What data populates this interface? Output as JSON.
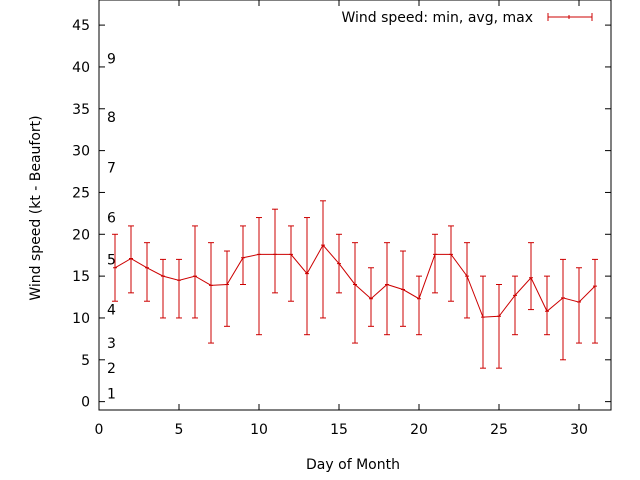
{
  "chart_data": {
    "type": "line",
    "xlabel": "Day of Month",
    "ylabel": "Wind speed (kt - Beaufort)",
    "xlim": [
      0,
      32
    ],
    "ylim": [
      -1,
      48
    ],
    "xticks": [
      "0",
      "5",
      "10",
      "15",
      "20",
      "25",
      "30"
    ],
    "yticks": [
      "0",
      "5",
      "10",
      "15",
      "20",
      "25",
      "30",
      "35",
      "40",
      "45"
    ],
    "beaufort_labels": [
      {
        "text": "1",
        "y": 1
      },
      {
        "text": "2",
        "y": 4
      },
      {
        "text": "3",
        "y": 7
      },
      {
        "text": "4",
        "y": 11
      },
      {
        "text": "5",
        "y": 17
      },
      {
        "text": "6",
        "y": 22
      },
      {
        "text": "7",
        "y": 28
      },
      {
        "text": "8",
        "y": 34
      },
      {
        "text": "9",
        "y": 41
      }
    ],
    "legend": "top-right",
    "color": "#cc0000",
    "series": [
      {
        "name": "Wind speed: min, avg, max",
        "x": [
          1,
          2,
          3,
          4,
          5,
          6,
          7,
          8,
          9,
          10,
          11,
          12,
          13,
          14,
          15,
          16,
          17,
          18,
          19,
          20,
          21,
          22,
          23,
          24,
          25,
          26,
          27,
          28,
          29,
          30,
          31
        ],
        "avg": [
          16.0,
          17.1,
          16.0,
          15.0,
          14.5,
          15.0,
          13.9,
          14.0,
          17.2,
          17.6,
          17.6,
          17.6,
          15.3,
          18.7,
          16.5,
          14.0,
          12.3,
          14.0,
          13.4,
          12.3,
          17.6,
          17.6,
          15.0,
          10.1,
          10.2,
          12.7,
          14.8,
          10.8,
          12.4,
          11.9,
          13.8
        ],
        "min": [
          12,
          13,
          12,
          10,
          10,
          10,
          7,
          9,
          14,
          8,
          13,
          12,
          8,
          10,
          13,
          7,
          9,
          8,
          9,
          8,
          13,
          12,
          10,
          4,
          4,
          8,
          11,
          8,
          5,
          7,
          7
        ],
        "max": [
          20,
          21,
          19,
          17,
          17,
          21,
          19,
          18,
          21,
          22,
          23,
          21,
          22,
          24,
          20,
          19,
          16,
          19,
          18,
          15,
          20,
          21,
          19,
          15,
          14,
          15,
          19,
          15,
          17,
          16,
          17
        ]
      }
    ]
  }
}
